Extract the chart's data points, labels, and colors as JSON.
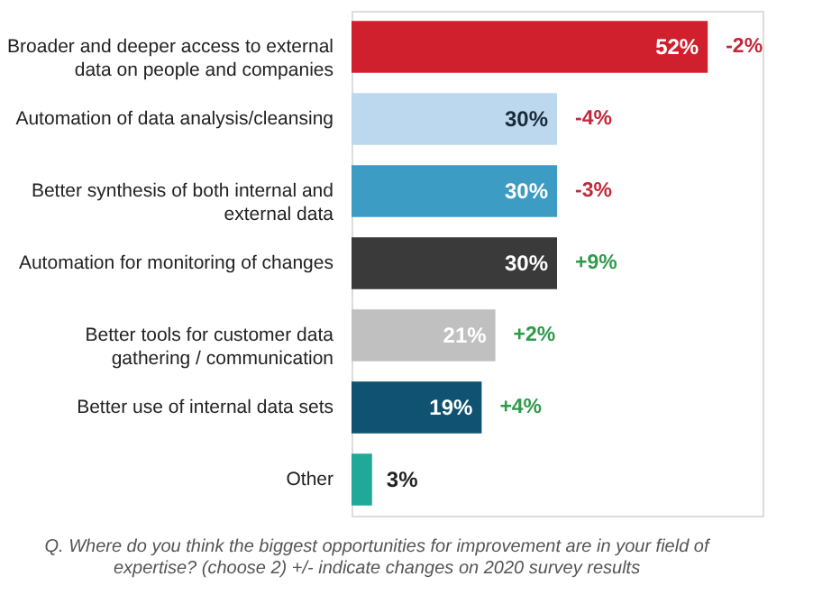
{
  "chart_data": {
    "type": "bar",
    "orientation": "horizontal",
    "categories": [
      "Broader and deeper access to external data on people and companies",
      "Automation of data analysis/cleansing",
      "Better synthesis of both internal and external data",
      "Automation for monitoring of changes",
      "Better tools for customer data gathering / communication",
      "Better use of internal data sets",
      "Other"
    ],
    "values": [
      52,
      30,
      30,
      30,
      21,
      19,
      3
    ],
    "colors": [
      "#d0202e",
      "#bcd8ee",
      "#3d9cc4",
      "#3a3a3a",
      "#c0c0c0",
      "#0f5272",
      "#20a898"
    ],
    "value_labels": [
      "52%",
      "30%",
      "30%",
      "30%",
      "21%",
      "19%",
      "3%"
    ],
    "xlim": [
      0,
      60
    ],
    "annotations": [
      {
        "text": "-2%",
        "x": 52,
        "y": "Broader and deeper access to external data on people and companies"
      },
      {
        "text": "-4%",
        "x": 30,
        "y": "Automation of data analysis/cleansing"
      },
      {
        "text": "-3%",
        "x": 30,
        "y": "Better synthesis of both internal and external data"
      },
      {
        "text": "+9%",
        "x": 30,
        "y": "Automation for monitoring of changes"
      },
      {
        "text": "+2%",
        "x": 21,
        "y": "Better tools for customer data gathering / communication"
      },
      {
        "text": "+4%",
        "x": 19,
        "y": "Better use of internal data sets"
      },
      "Q. Where do you think the biggest opportunities for improvement are in your field of expertise? (choose 2)  +/- indicate changes on 2020 survey results"
    ]
  }
}
